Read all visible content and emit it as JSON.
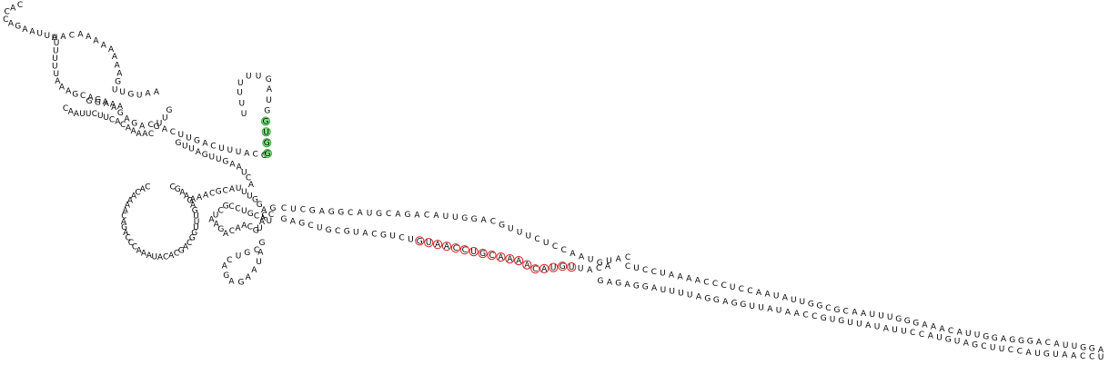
{
  "diagram": {
    "type": "rna-secondary-structure",
    "highlight_colors": {
      "site_a": "#d62020",
      "site_b": "#2f9a2f"
    },
    "segments": [
      {
        "name": "five-prime-tail",
        "text": "CACCAGAAUUU"
      },
      {
        "name": "top-left-loop-upper",
        "text": "AACAAAAAAAAGUUGUAA"
      },
      {
        "name": "top-left-loop-lower",
        "text": "UUUUUAAAGCAGAAA"
      },
      {
        "name": "mid-left-helix-a",
        "text": "CAAUUCUUCACAAAAC"
      },
      {
        "name": "mid-left-helix-b",
        "text": "GGAAGAGACUUG"
      },
      {
        "name": "hairpin-stem-loop",
        "text": "UUUUUUGAUGGUGG"
      },
      {
        "name": "central-helix-upper",
        "text": "GACUUGACUUUACC"
      },
      {
        "name": "central-helix-lower",
        "text": "GUUAGUUGAAUCA"
      },
      {
        "name": "left-big-loop",
        "text": "CGAAGAGUUUGGCAGCACAUAAACCCAGACAAAACAC"
      },
      {
        "name": "junction-stems",
        "text": "AAACGCAUUUGGACAUGCAACAGAAUCGCCUGCAUCG"
      },
      {
        "name": "bottom-hairpin",
        "text": "GAUAAGAGACUGC"
      },
      {
        "name": "long-arm-upper",
        "text": "CUCGAGGCAUGCAGACAUUGGACGUUUCUCCAAUGUAC"
      },
      {
        "name": "long-arm-lower",
        "text": "GAGCUGCGUACGUCUGUAACCUGCAAAACAUGUUACA"
      },
      {
        "name": "right-arm-upper",
        "text": "CUCCUAAAACCCUCCAAUAUUGGCGCAAUUUGGGAAACAUUGGAGGGACAUUGGA"
      },
      {
        "name": "right-arm-lower",
        "text": "GAGAGGAUUUUAGGAGGUUAUAACCGUGUUAUAUUCCAUGUAGCUUCCAUGUAACCU"
      }
    ]
  }
}
